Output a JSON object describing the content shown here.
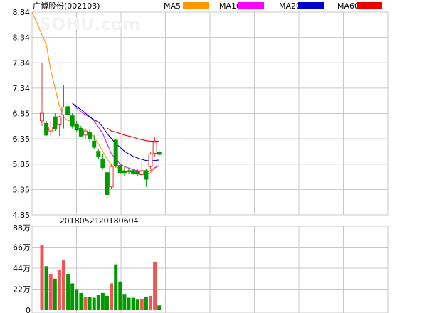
{
  "chart_data": {
    "type": "candlestick",
    "title": "广博股份(002103)",
    "watermark": "SOHU.com",
    "legend": [
      {
        "name": "MA5",
        "color": "#ff9900"
      },
      {
        "name": "MA10",
        "color": "#ff00ff"
      },
      {
        "name": "MA20",
        "color": "#0000cc"
      },
      {
        "name": "MA60",
        "color": "#ee0000"
      }
    ],
    "price_axis": {
      "ticks": [
        "8.84",
        "8.34",
        "7.84",
        "7.34",
        "6.85",
        "6.35",
        "5.85",
        "5.35",
        "4.85"
      ],
      "min": 4.85,
      "max": 8.84
    },
    "date_labels": [
      {
        "text": "20180521",
        "index": 7
      },
      {
        "text": "20180604",
        "index": 16
      }
    ],
    "volume_axis": {
      "ticks": [
        "88万",
        "66万",
        "44万",
        "22万",
        "0"
      ],
      "max": 88
    },
    "colors": {
      "up": "#ee3333",
      "down": "#009900",
      "grid": "#c8c8c8"
    },
    "candles": [
      {
        "o": 6.7,
        "h": 7.84,
        "l": 6.6,
        "c": 6.85,
        "v": 68
      },
      {
        "o": 6.65,
        "h": 6.7,
        "l": 6.4,
        "c": 6.42,
        "v": 46
      },
      {
        "o": 6.5,
        "h": 6.7,
        "l": 6.4,
        "c": 6.58,
        "v": 38
      },
      {
        "o": 6.78,
        "h": 6.85,
        "l": 6.5,
        "c": 6.55,
        "v": 33
      },
      {
        "o": 6.62,
        "h": 6.8,
        "l": 6.4,
        "c": 6.78,
        "v": 42
      },
      {
        "o": 6.82,
        "h": 7.4,
        "l": 6.55,
        "c": 6.97,
        "v": 53
      },
      {
        "o": 6.98,
        "h": 7.05,
        "l": 6.75,
        "c": 6.82,
        "v": 38
      },
      {
        "o": 6.8,
        "h": 6.85,
        "l": 6.55,
        "c": 6.6,
        "v": 28
      },
      {
        "o": 6.62,
        "h": 6.7,
        "l": 6.48,
        "c": 6.52,
        "v": 22
      },
      {
        "o": 6.55,
        "h": 6.6,
        "l": 6.38,
        "c": 6.4,
        "v": 18
      },
      {
        "o": 6.42,
        "h": 6.55,
        "l": 6.35,
        "c": 6.5,
        "v": 14
      },
      {
        "o": 6.48,
        "h": 6.55,
        "l": 6.3,
        "c": 6.35,
        "v": 14
      },
      {
        "o": 6.3,
        "h": 6.42,
        "l": 6.15,
        "c": 6.18,
        "v": 13
      },
      {
        "o": 6.1,
        "h": 6.15,
        "l": 5.95,
        "c": 6.0,
        "v": 16
      },
      {
        "o": 5.95,
        "h": 6.05,
        "l": 5.75,
        "c": 5.78,
        "v": 18
      },
      {
        "o": 5.68,
        "h": 5.72,
        "l": 5.17,
        "c": 5.25,
        "v": 15
      },
      {
        "o": 5.4,
        "h": 5.85,
        "l": 5.35,
        "c": 5.8,
        "v": 28
      },
      {
        "o": 6.32,
        "h": 6.35,
        "l": 5.78,
        "c": 5.82,
        "v": 48
      },
      {
        "o": 5.82,
        "h": 5.85,
        "l": 5.65,
        "c": 5.68,
        "v": 30
      },
      {
        "o": 5.7,
        "h": 5.8,
        "l": 5.62,
        "c": 5.68,
        "v": 17
      },
      {
        "o": 5.72,
        "h": 5.78,
        "l": 5.65,
        "c": 5.7,
        "v": 13
      },
      {
        "o": 5.72,
        "h": 5.76,
        "l": 5.64,
        "c": 5.66,
        "v": 13
      },
      {
        "o": 5.7,
        "h": 5.75,
        "l": 5.62,
        "c": 5.65,
        "v": 11
      },
      {
        "o": 5.64,
        "h": 5.9,
        "l": 5.6,
        "c": 5.72,
        "v": 12
      },
      {
        "o": 5.72,
        "h": 5.76,
        "l": 5.4,
        "c": 5.55,
        "v": 14
      },
      {
        "o": 5.8,
        "h": 6.08,
        "l": 5.75,
        "c": 6.05,
        "v": 15
      },
      {
        "o": 6.06,
        "h": 6.38,
        "l": 6.0,
        "c": 6.28,
        "v": 50
      },
      {
        "o": 6.08,
        "h": 6.12,
        "l": 6.0,
        "c": 6.04,
        "v": 5
      }
    ],
    "ma5": [
      8.84,
      8.2,
      7.7,
      7.35,
      7.0,
      6.78,
      6.7,
      6.72,
      6.62,
      6.55,
      6.5,
      6.45,
      6.38,
      6.25,
      6.1,
      5.95,
      5.82,
      5.8,
      5.75,
      5.72,
      5.7,
      5.69,
      5.66,
      5.65,
      5.64,
      5.68,
      5.77,
      5.82
    ],
    "ma10": [
      null,
      null,
      null,
      null,
      null,
      null,
      null,
      7.05,
      6.95,
      6.88,
      6.82,
      6.78,
      6.7,
      6.58,
      6.45,
      6.25,
      6.05,
      5.95,
      5.85,
      5.8,
      5.77,
      5.74,
      5.72,
      5.7,
      5.69,
      5.72,
      5.78,
      5.82
    ],
    "ma20": [
      null,
      null,
      null,
      null,
      null,
      null,
      null,
      7.05,
      6.98,
      6.92,
      6.85,
      6.78,
      6.72,
      6.68,
      6.58,
      6.45,
      6.35,
      6.25,
      6.18,
      6.1,
      6.05,
      6.0,
      5.97,
      5.94,
      5.92,
      5.91,
      5.92,
      5.93
    ],
    "ma60": [
      null,
      null,
      null,
      null,
      null,
      null,
      null,
      null,
      null,
      null,
      null,
      null,
      null,
      null,
      null,
      6.56,
      6.5,
      6.48,
      6.45,
      6.42,
      6.4,
      6.38,
      6.35,
      6.33,
      6.31,
      6.3,
      6.3,
      6.3
    ]
  }
}
